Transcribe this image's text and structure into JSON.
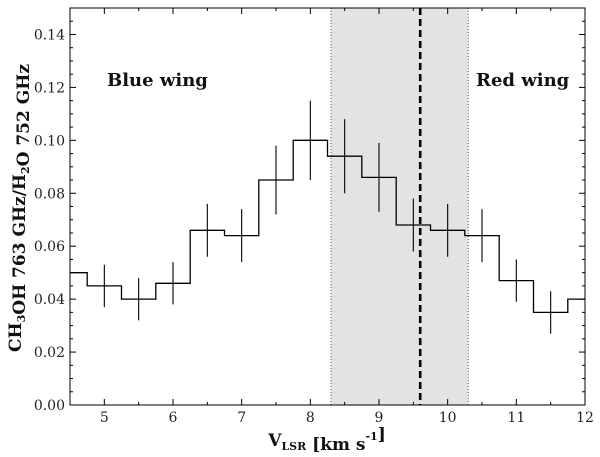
{
  "chart_data": {
    "type": "line",
    "subtype": "step",
    "xlabel": "V_LSR [km s^-1]",
    "ylabel": "CH3OH 763 GHz/H2O 752 GHz",
    "xlim": [
      4.5,
      12
    ],
    "ylim": [
      0,
      0.15
    ],
    "xticks": [
      5,
      6,
      7,
      8,
      9,
      10,
      11,
      12
    ],
    "yticks": [
      0.0,
      0.02,
      0.04,
      0.06,
      0.08,
      0.1,
      0.12,
      0.14
    ],
    "grid": false,
    "series": [
      {
        "x": [
          4.5,
          5.0,
          5.5,
          6.0,
          6.5,
          7.0,
          7.5,
          8.0,
          8.5,
          9.0,
          9.5,
          10.0,
          10.5,
          11.0,
          11.5,
          12.0
        ],
        "values": [
          0.05,
          0.045,
          0.04,
          0.046,
          0.066,
          0.064,
          0.085,
          0.1,
          0.094,
          0.086,
          0.068,
          0.066,
          0.064,
          0.047,
          0.035,
          0.04
        ],
        "errors": [
          null,
          0.008,
          0.008,
          0.008,
          0.01,
          0.01,
          0.013,
          0.015,
          0.014,
          0.013,
          0.01,
          0.01,
          0.01,
          0.008,
          0.008,
          null
        ]
      }
    ],
    "shaded_region": {
      "x": [
        8.3,
        10.3
      ],
      "color": "#e3e3e3",
      "edge_style": "dotted"
    },
    "vline": {
      "x": 9.6,
      "style": "dashed",
      "color": "#000000"
    },
    "annotations": [
      "Blue wing",
      "Red wing"
    ]
  }
}
